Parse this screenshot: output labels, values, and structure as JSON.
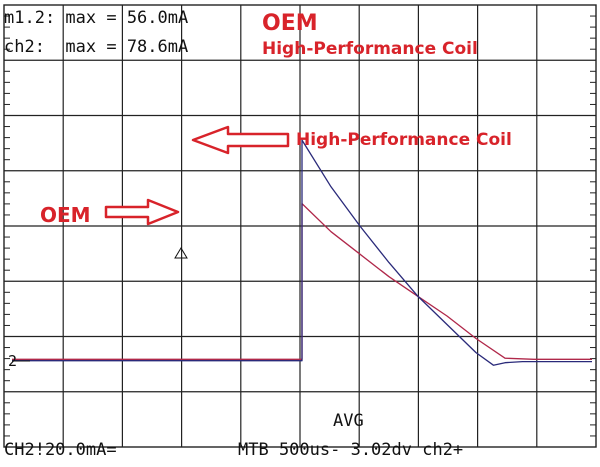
{
  "readouts": {
    "line1": "m1.2: max = 56.0mA",
    "line2": "ch2:  max = 78.6mA"
  },
  "annotations": {
    "oem_top": "OEM",
    "hp_top": "High-Performance Coil",
    "hp_arrow": "High-Performance Coil",
    "oem_arrow": "OEM"
  },
  "status": {
    "mode": "AVG",
    "left": "CH2!20.0mA=",
    "right": "MTB 500us- 3.02dv ch2+"
  },
  "marker": "2",
  "colors": {
    "oem_trace": "#b0284a",
    "hp_trace": "#2a2a7a",
    "annotation": "#d8232a",
    "grid": "#222222"
  },
  "chart_data": {
    "type": "line",
    "xlabel": "",
    "ylabel": "",
    "x_unit": "us",
    "y_unit": "mA",
    "xlim": [
      -2500,
      2500
    ],
    "ylim": [
      -20,
      140
    ],
    "grid": true,
    "series": [
      {
        "name": "OEM",
        "color": "#b0284a",
        "x": [
          -2500,
          -20,
          0,
          0,
          250,
          500,
          750,
          1000,
          1250,
          1500,
          1750,
          2000,
          2250,
          2500
        ],
        "y": [
          0.6,
          0.6,
          0.6,
          56.0,
          46,
          38,
          30,
          23,
          16,
          8,
          1,
          0.6,
          0.6,
          0.6
        ]
      },
      {
        "name": "High-Performance Coil",
        "color": "#2a2a7a",
        "x": [
          -2500,
          -20,
          0,
          0,
          250,
          500,
          750,
          1000,
          1250,
          1500,
          1650,
          1750,
          1900,
          2000,
          2250,
          2500
        ],
        "y": [
          0.1,
          0.1,
          0.1,
          78.6,
          62,
          48,
          35,
          23,
          13,
          3,
          -1.5,
          -0.6,
          -0.2,
          -0.2,
          -0.2,
          -0.2
        ]
      }
    ]
  }
}
